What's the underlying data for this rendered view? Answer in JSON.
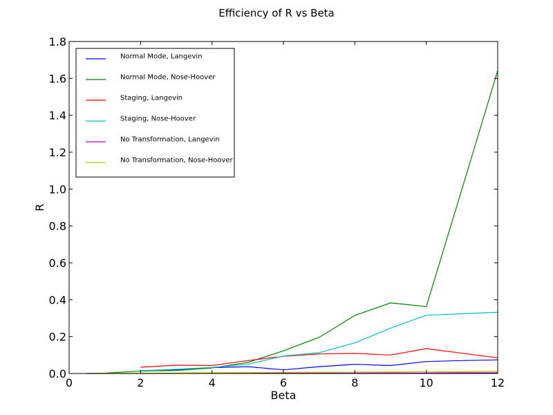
{
  "chart_data": {
    "type": "line",
    "title": "Efficiency of R vs Beta",
    "xlabel": "Beta",
    "ylabel": "R",
    "xlim": [
      0,
      12
    ],
    "ylim": [
      0,
      1.8
    ],
    "xticks": [
      0,
      2,
      4,
      6,
      8,
      10,
      12
    ],
    "xtick_labels": [
      "0",
      "2",
      "4",
      "6",
      "8",
      "10",
      "12"
    ],
    "yticks": [
      0,
      0.2,
      0.4,
      0.6,
      0.8,
      1.0,
      1.2,
      1.4,
      1.6,
      1.8
    ],
    "ytick_labels": [
      "0.0",
      "0.2",
      "0.4",
      "0.6",
      "0.8",
      "1.0",
      "1.2",
      "1.4",
      "1.6",
      "1.8"
    ],
    "grid": false,
    "legend_position": "top-left",
    "series": [
      {
        "name": "Normal Mode, Langevin",
        "color": "#0000ff",
        "x": [
          2,
          3,
          4,
          5,
          6,
          7,
          8,
          9,
          10,
          11,
          12
        ],
        "y": [
          0.013,
          0.02,
          0.032,
          0.037,
          0.02,
          0.037,
          0.05,
          0.043,
          0.065,
          0.07,
          0.074
        ]
      },
      {
        "name": "Normal Mode, Nose-Hoover",
        "color": "#008000",
        "x": [
          0.5,
          1,
          2,
          3,
          4,
          5,
          6,
          7,
          8,
          9,
          10,
          11,
          12
        ],
        "y": [
          0.0,
          0.002,
          0.014,
          0.016,
          0.03,
          0.06,
          0.123,
          0.196,
          0.315,
          0.383,
          0.363,
          1.0,
          1.642
        ]
      },
      {
        "name": "Staging, Langevin",
        "color": "#ff0000",
        "x": [
          2,
          3,
          4,
          5,
          6,
          7,
          8,
          9,
          10,
          11,
          12
        ],
        "y": [
          0.034,
          0.045,
          0.043,
          0.07,
          0.093,
          0.106,
          0.109,
          0.1,
          0.135,
          0.11,
          0.085
        ]
      },
      {
        "name": "Staging, Nose-Hoover",
        "color": "#00bfbf",
        "x": [
          2,
          3,
          4,
          5,
          6,
          7,
          8,
          9,
          10,
          11,
          12
        ],
        "y": [
          0.015,
          0.023,
          0.033,
          0.05,
          0.095,
          0.113,
          0.166,
          0.246,
          0.316,
          0.324,
          0.332
        ]
      },
      {
        "name": "No Transformation, Langevin",
        "color": "#bf00bf",
        "x": [
          0.5,
          1,
          2,
          3,
          4,
          5,
          6,
          7,
          8,
          9,
          10,
          11,
          12
        ],
        "y": [
          0.0,
          0.0,
          0.001,
          0.001,
          0.001,
          0.002,
          0.002,
          0.002,
          0.002,
          0.003,
          0.003,
          0.004,
          0.004
        ]
      },
      {
        "name": "No Transformation, Nose-Hoover",
        "color": "#bfbf00",
        "x": [
          0.5,
          1,
          2,
          3,
          4,
          5,
          6,
          7,
          8,
          9,
          10,
          11,
          12
        ],
        "y": [
          0.0,
          0.001,
          0.002,
          0.003,
          0.004,
          0.005,
          0.006,
          0.007,
          0.008,
          0.009,
          0.01,
          0.011,
          0.013
        ]
      }
    ]
  }
}
